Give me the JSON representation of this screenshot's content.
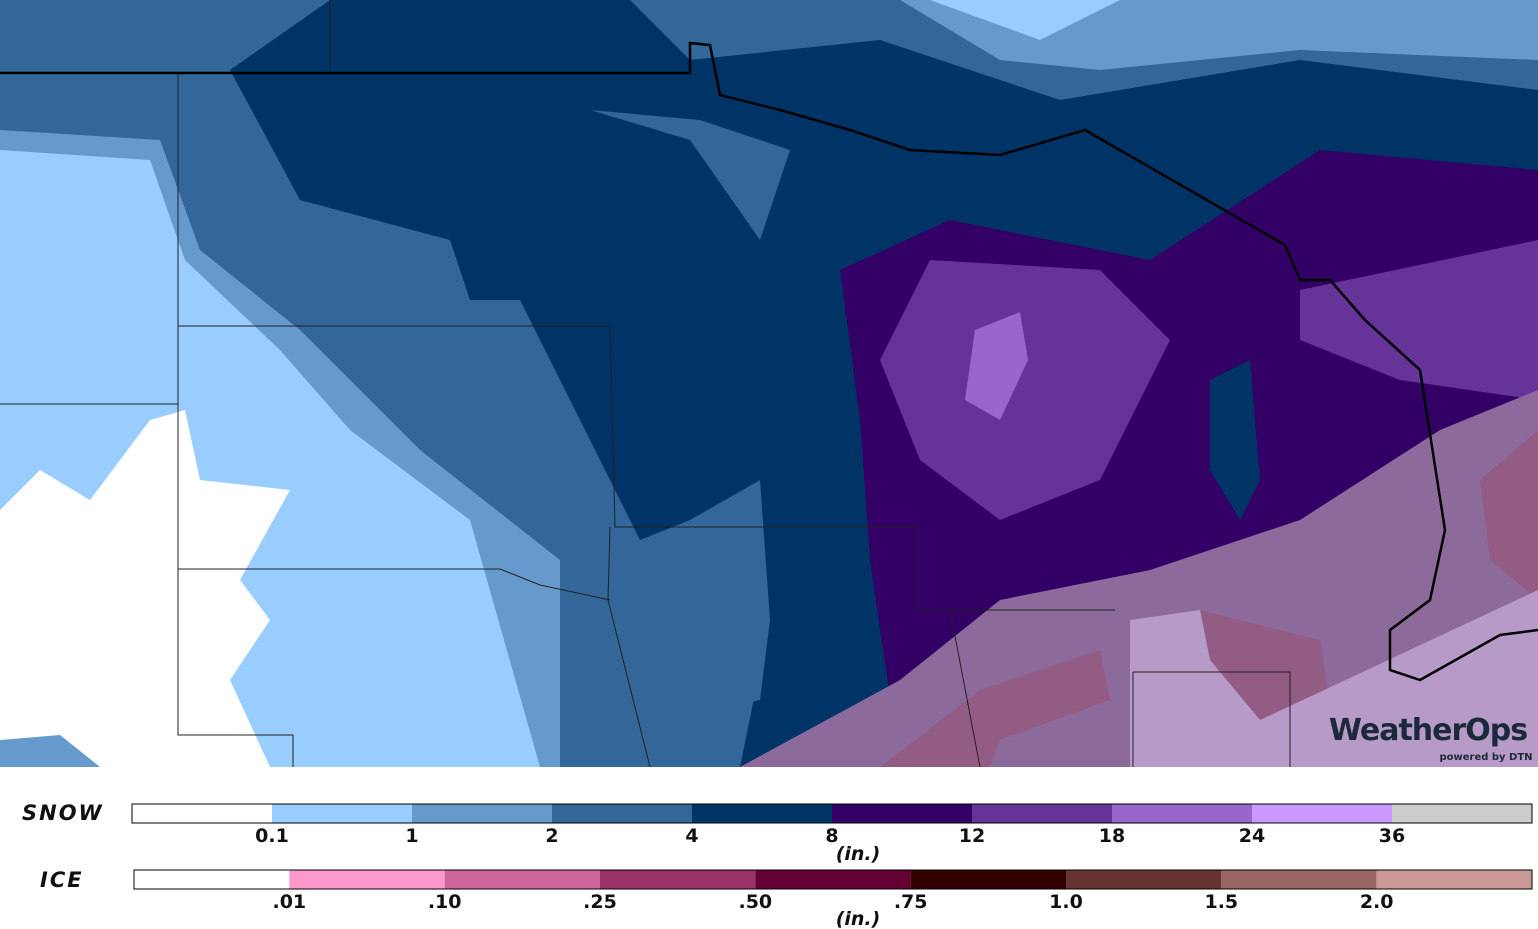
{
  "legend": {
    "snow": {
      "label": "SNOW",
      "unit": "(in.)",
      "colors": [
        "#ffffff",
        "#99ccff",
        "#6699cc",
        "#336699",
        "#003366",
        "#330066",
        "#663399",
        "#9966cc",
        "#cc99ff",
        "#cccccc"
      ],
      "ticks": [
        "0.1",
        "1",
        "2",
        "4",
        "8",
        "12",
        "18",
        "24",
        "36"
      ]
    },
    "ice": {
      "label": "ICE",
      "unit": "(in.)",
      "colors": [
        "#ffffff",
        "#ff99cc",
        "#cc6699",
        "#993366",
        "#660033",
        "#330000",
        "#663333",
        "#996666",
        "#cc9999"
      ],
      "ticks": [
        ".01",
        ".10",
        ".25",
        ".50",
        ".75",
        "1.0",
        "1.5",
        "2.0"
      ]
    }
  },
  "logo": {
    "brand": "WeatherOps",
    "tagline": "powered by DTN"
  }
}
